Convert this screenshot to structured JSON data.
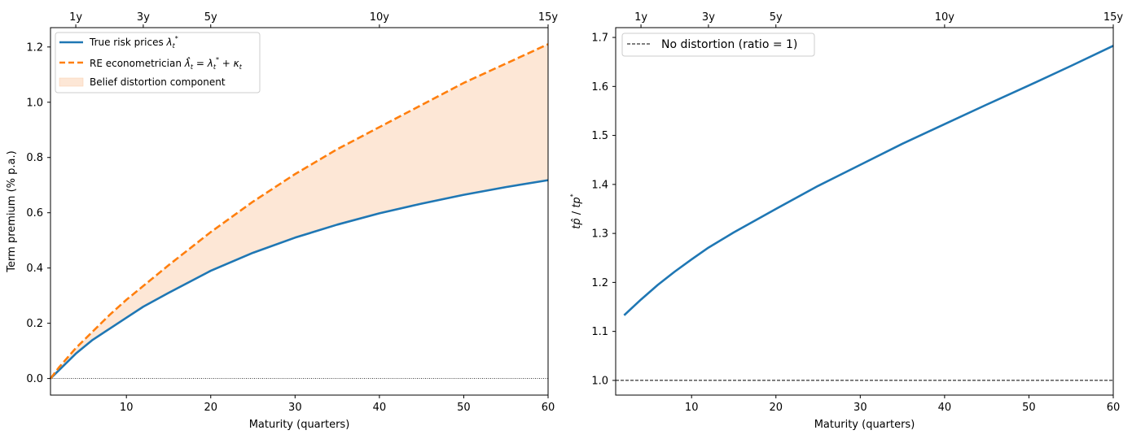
{
  "colors": {
    "true_line": "#1f77b4",
    "re_line": "#ff7f0e",
    "band_fill": "#fde7d6",
    "ratio_line": "#1f77b4",
    "ref_line": "#000000"
  },
  "chart_data": [
    {
      "type": "line",
      "xlabel": "Maturity (quarters)",
      "ylabel": "Term premium (% p.a.)",
      "xlim": [
        1,
        60
      ],
      "ylim": [
        -0.06,
        1.27
      ],
      "x_ticks": [
        10,
        20,
        30,
        40,
        50,
        60
      ],
      "y_ticks": [
        0.0,
        0.2,
        0.4,
        0.6,
        0.8,
        1.0,
        1.2
      ],
      "y_tick_labels": [
        "0.0",
        "0.2",
        "0.4",
        "0.6",
        "0.8",
        "1.0",
        "1.2"
      ],
      "top_ticks": [
        {
          "x": 4,
          "label": "1y"
        },
        {
          "x": 12,
          "label": "3y"
        },
        {
          "x": 20,
          "label": "5y"
        },
        {
          "x": 40,
          "label": "10y"
        },
        {
          "x": 60,
          "label": "15y"
        }
      ],
      "grid": false,
      "legend_position": "upper-left",
      "x": [
        1,
        2,
        4,
        6,
        8,
        10,
        12,
        15,
        20,
        25,
        30,
        35,
        40,
        45,
        50,
        55,
        60
      ],
      "series": [
        {
          "name": "True risk prices λ_t*",
          "style": "solid",
          "values": [
            0.0,
            0.03,
            0.09,
            0.14,
            0.18,
            0.22,
            0.26,
            0.31,
            0.39,
            0.455,
            0.51,
            0.557,
            0.598,
            0.633,
            0.665,
            0.693,
            0.718
          ]
        },
        {
          "name": "RE econometrician λ̂_t = λ_t* + κ_t",
          "style": "dashed",
          "values": [
            0.0,
            0.04,
            0.11,
            0.17,
            0.23,
            0.285,
            0.335,
            0.41,
            0.53,
            0.64,
            0.74,
            0.83,
            0.91,
            0.99,
            1.07,
            1.14,
            1.21
          ]
        }
      ],
      "band": {
        "name": "Belief distortion component",
        "between": [
          "True risk prices λ_t*",
          "RE econometrician λ̂_t = λ_t* + κ_t"
        ]
      },
      "reference_line": {
        "y": 0.0,
        "style": "dotted"
      }
    },
    {
      "type": "line",
      "xlabel": "Maturity (quarters)",
      "ylabel": "tp̂ / tp*",
      "xlim": [
        1,
        60
      ],
      "ylim": [
        0.97,
        1.72
      ],
      "x_ticks": [
        10,
        20,
        30,
        40,
        50,
        60
      ],
      "y_ticks": [
        1.0,
        1.1,
        1.2,
        1.3,
        1.4,
        1.5,
        1.6,
        1.7
      ],
      "y_tick_labels": [
        "1.0",
        "1.1",
        "1.2",
        "1.3",
        "1.4",
        "1.5",
        "1.6",
        "1.7"
      ],
      "top_ticks": [
        {
          "x": 4,
          "label": "1y"
        },
        {
          "x": 12,
          "label": "3y"
        },
        {
          "x": 20,
          "label": "5y"
        },
        {
          "x": 40,
          "label": "10y"
        },
        {
          "x": 60,
          "label": "15y"
        }
      ],
      "grid": false,
      "legend_position": "upper-left",
      "x": [
        2,
        4,
        6,
        8,
        10,
        12,
        15,
        20,
        25,
        30,
        35,
        40,
        45,
        50,
        55,
        60
      ],
      "series": [
        {
          "name": "",
          "style": "solid",
          "values": [
            1.133,
            1.165,
            1.195,
            1.222,
            1.247,
            1.271,
            1.302,
            1.35,
            1.397,
            1.44,
            1.483,
            1.523,
            1.563,
            1.602,
            1.642,
            1.683
          ]
        }
      ],
      "reference_line": {
        "y": 1.0,
        "style": "dashed",
        "name": "No distortion (ratio = 1)"
      }
    }
  ]
}
